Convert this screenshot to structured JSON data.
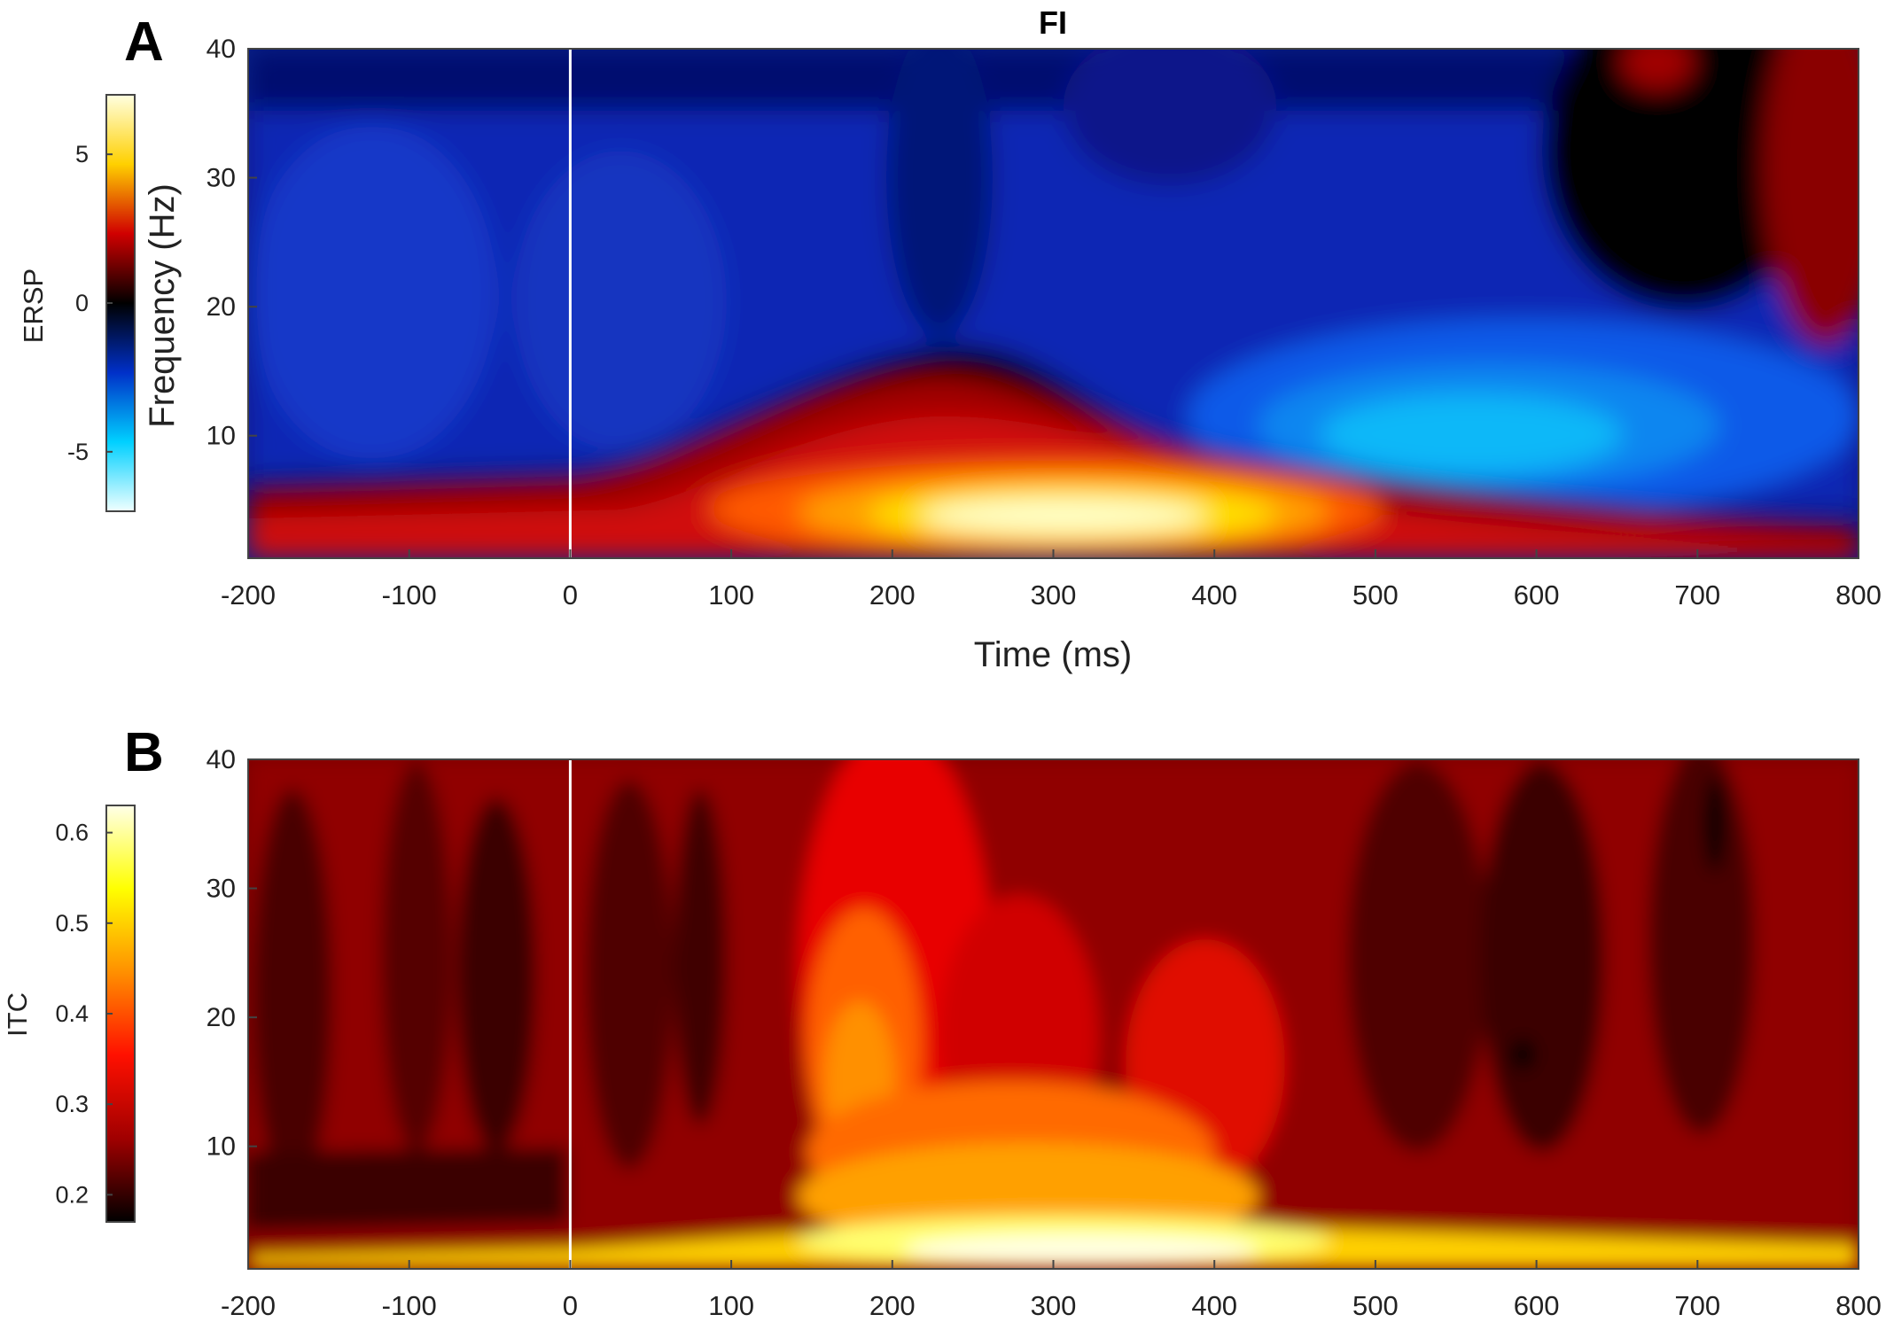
{
  "chart_data": [
    {
      "type": "heatmap",
      "panel_label": "A",
      "title": "FI",
      "xlabel": "Time (ms)",
      "ylabel": "Frequency (Hz)",
      "x_range": [
        -200,
        800
      ],
      "y_range": [
        0.5,
        40
      ],
      "x_ticks": [
        -200,
        -100,
        0,
        100,
        200,
        300,
        400,
        500,
        600,
        700,
        800
      ],
      "y_ticks": [
        10,
        20,
        30,
        40
      ],
      "stimulus_onset_line": 0,
      "colorbar": {
        "label": "ERSP",
        "range": [
          -7,
          7
        ],
        "ticks": [
          -5,
          0,
          5
        ],
        "colormap": "blue-cyan-black-red-yellow",
        "colors": [
          "#f0ffff",
          "#00d0ff",
          "#0030c8",
          "#000000",
          "#d00000",
          "#ffd000",
          "#ffffe0"
        ]
      }
    },
    {
      "type": "heatmap",
      "panel_label": "B",
      "xlabel": "",
      "ylabel": "",
      "x_range": [
        -200,
        800
      ],
      "y_range": [
        0.5,
        40
      ],
      "x_ticks": [
        -200,
        -100,
        0,
        100,
        200,
        300,
        400,
        500,
        600,
        700,
        800
      ],
      "y_ticks": [
        10,
        20,
        30,
        40
      ],
      "stimulus_onset_line": 0,
      "colorbar": {
        "label": "ITC",
        "range": [
          0.17,
          0.63
        ],
        "ticks": [
          0.2,
          0.3,
          0.4,
          0.5,
          0.6
        ],
        "colormap": "hot",
        "colors": [
          "#000000",
          "#a00000",
          "#ff1000",
          "#ff9000",
          "#ffff00",
          "#ffffe8"
        ]
      }
    }
  ]
}
